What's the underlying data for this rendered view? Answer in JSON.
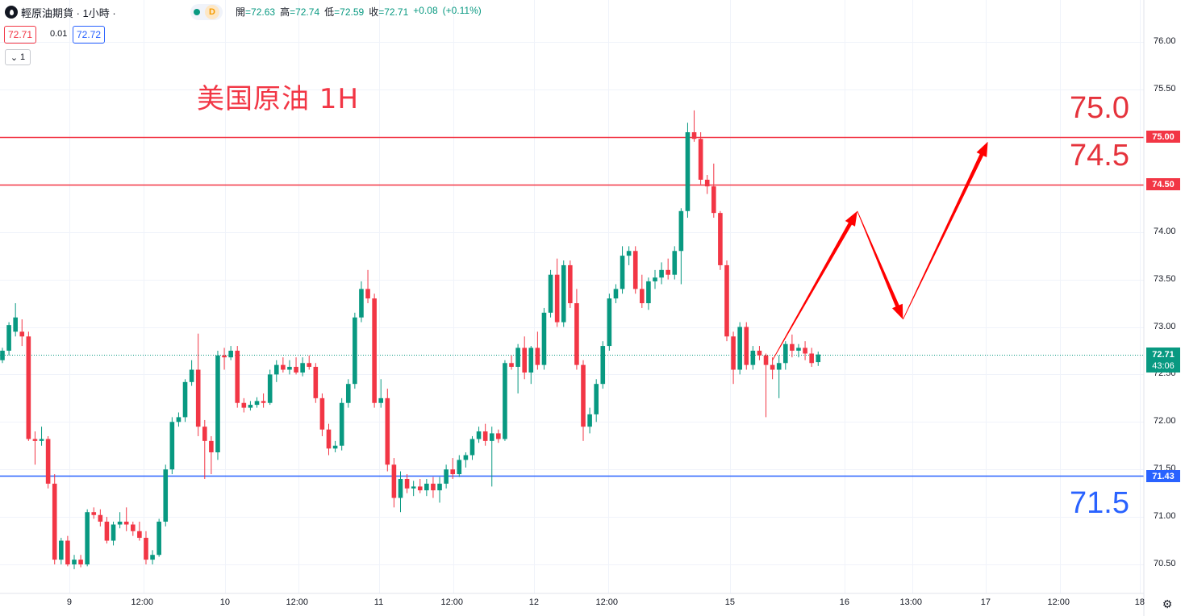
{
  "header": {
    "symbol_title": "輕原油期貨 · 1小時 ·",
    "status_badge": "D",
    "ohlc": [
      {
        "label": "開",
        "value": "=72.63"
      },
      {
        "label": "高",
        "value": "=72.74"
      },
      {
        "label": "低",
        "value": "=72.59"
      },
      {
        "label": "收",
        "value": "=72.71"
      },
      {
        "label": "",
        "value": "+0.08"
      },
      {
        "label": "",
        "value": "(+0.11%)"
      }
    ],
    "sell_price": "72.71",
    "spread": "0.01",
    "buy_price": "72.72",
    "lots": "1"
  },
  "colors": {
    "up": "#089981",
    "down": "#f23645",
    "resistance": "#f23645",
    "support": "#2962ff",
    "arrow": "#ff0000"
  },
  "annotations": {
    "title": "美国原油 1H",
    "resistance_1": "75.0",
    "resistance_2": "74.5",
    "support_1": "71.5"
  },
  "price_tags": {
    "r1": "75.00",
    "r2": "74.50",
    "s1": "71.43",
    "current_price": "72.71",
    "countdown": "43:06"
  },
  "chart_data": {
    "type": "candlestick",
    "ylim": [
      70.35,
      76.15
    ],
    "y_ticks": [
      "76.00",
      "75.50",
      "75.00",
      "74.50",
      "74.00",
      "73.50",
      "73.00",
      "72.50",
      "72.00",
      "71.50",
      "71.00",
      "70.50"
    ],
    "x_ticks": [
      "9",
      "12:00",
      "10",
      "12:00",
      "11",
      "12:00",
      "12",
      "12:00",
      "15",
      "16",
      "13:00",
      "17",
      "12:00",
      "18"
    ],
    "horizontal_lines": [
      {
        "price": 75.0,
        "color": "#f23645"
      },
      {
        "price": 74.5,
        "color": "#f23645"
      },
      {
        "price": 71.43,
        "color": "#2962ff"
      }
    ],
    "current_price": 72.71,
    "projection_path": [
      {
        "bar": 118,
        "price": 72.65
      },
      {
        "bar": 131,
        "price": 74.22
      },
      {
        "bar": 138,
        "price": 73.08
      },
      {
        "bar": 151,
        "price": 74.95
      }
    ],
    "ohlc_bars": [
      [
        72.65,
        72.78,
        72.62,
        72.75
      ],
      [
        72.75,
        73.05,
        72.7,
        73.02
      ],
      [
        72.95,
        73.25,
        72.9,
        73.1
      ],
      [
        72.95,
        73.08,
        72.8,
        72.9
      ],
      [
        72.9,
        72.95,
        71.8,
        71.82
      ],
      [
        71.82,
        71.9,
        71.55,
        71.8
      ],
      [
        71.8,
        71.95,
        71.75,
        71.82
      ],
      [
        71.82,
        71.85,
        71.3,
        71.35
      ],
      [
        71.35,
        71.45,
        70.5,
        70.55
      ],
      [
        70.55,
        70.78,
        70.5,
        70.75
      ],
      [
        70.75,
        70.8,
        70.48,
        70.5
      ],
      [
        70.5,
        70.6,
        70.45,
        70.55
      ],
      [
        70.55,
        70.6,
        70.47,
        70.5
      ],
      [
        70.5,
        71.08,
        70.48,
        71.05
      ],
      [
        71.05,
        71.1,
        70.98,
        71.02
      ],
      [
        71.02,
        71.08,
        70.9,
        70.95
      ],
      [
        70.95,
        71.0,
        70.72,
        70.75
      ],
      [
        70.75,
        70.95,
        70.7,
        70.92
      ],
      [
        70.92,
        71.05,
        70.88,
        70.95
      ],
      [
        70.95,
        71.1,
        70.85,
        70.92
      ],
      [
        70.92,
        70.95,
        70.8,
        70.85
      ],
      [
        70.85,
        70.95,
        70.75,
        70.78
      ],
      [
        70.78,
        70.85,
        70.5,
        70.55
      ],
      [
        70.55,
        70.65,
        70.5,
        70.6
      ],
      [
        70.6,
        70.98,
        70.58,
        70.95
      ],
      [
        70.95,
        71.55,
        70.9,
        71.5
      ],
      [
        71.5,
        72.05,
        71.45,
        72.0
      ],
      [
        72.0,
        72.1,
        71.95,
        72.05
      ],
      [
        72.05,
        72.45,
        72.0,
        72.42
      ],
      [
        72.42,
        72.65,
        72.38,
        72.55
      ],
      [
        72.55,
        72.93,
        71.85,
        71.95
      ],
      [
        71.95,
        72.02,
        71.4,
        71.8
      ],
      [
        71.8,
        71.85,
        71.45,
        71.68
      ],
      [
        71.68,
        72.75,
        71.6,
        72.7
      ],
      [
        72.7,
        72.78,
        72.55,
        72.68
      ],
      [
        72.68,
        72.8,
        72.65,
        72.75
      ],
      [
        72.75,
        72.8,
        72.15,
        72.2
      ],
      [
        72.2,
        72.25,
        72.1,
        72.15
      ],
      [
        72.15,
        72.22,
        72.12,
        72.18
      ],
      [
        72.18,
        72.26,
        72.15,
        72.22
      ],
      [
        72.22,
        72.3,
        72.15,
        72.2
      ],
      [
        72.2,
        72.55,
        72.18,
        72.5
      ],
      [
        72.5,
        72.65,
        72.42,
        72.6
      ],
      [
        72.6,
        72.68,
        72.52,
        72.55
      ],
      [
        72.55,
        72.65,
        72.5,
        72.58
      ],
      [
        72.58,
        72.68,
        72.5,
        72.52
      ],
      [
        72.52,
        72.68,
        72.48,
        72.62
      ],
      [
        72.62,
        72.7,
        72.55,
        72.58
      ],
      [
        72.58,
        72.62,
        72.2,
        72.25
      ],
      [
        72.25,
        72.3,
        71.85,
        71.92
      ],
      [
        71.92,
        71.98,
        71.65,
        71.72
      ],
      [
        71.72,
        71.8,
        71.68,
        71.75
      ],
      [
        71.75,
        72.25,
        71.7,
        72.2
      ],
      [
        72.2,
        72.45,
        72.15,
        72.4
      ],
      [
        72.4,
        73.15,
        72.35,
        73.1
      ],
      [
        73.1,
        73.48,
        73.05,
        73.4
      ],
      [
        73.4,
        73.6,
        73.25,
        73.3
      ],
      [
        73.3,
        73.35,
        72.15,
        72.2
      ],
      [
        72.2,
        72.45,
        72.15,
        72.25
      ],
      [
        72.25,
        72.35,
        71.48,
        71.55
      ],
      [
        71.55,
        71.62,
        71.1,
        71.2
      ],
      [
        71.2,
        71.48,
        71.05,
        71.4
      ],
      [
        71.4,
        71.45,
        71.25,
        71.3
      ],
      [
        71.3,
        71.38,
        71.22,
        71.32
      ],
      [
        71.32,
        71.4,
        71.25,
        71.28
      ],
      [
        71.28,
        71.4,
        71.22,
        71.35
      ],
      [
        71.35,
        71.42,
        71.2,
        71.28
      ],
      [
        71.28,
        71.42,
        71.15,
        71.35
      ],
      [
        71.35,
        71.55,
        71.3,
        71.5
      ],
      [
        71.5,
        71.62,
        71.4,
        71.45
      ],
      [
        71.45,
        71.65,
        71.42,
        71.6
      ],
      [
        71.6,
        71.68,
        71.52,
        71.65
      ],
      [
        71.65,
        71.85,
        71.6,
        71.82
      ],
      [
        71.82,
        71.95,
        71.78,
        71.9
      ],
      [
        71.9,
        71.98,
        71.75,
        71.8
      ],
      [
        71.8,
        71.95,
        71.32,
        71.88
      ],
      [
        71.88,
        71.92,
        71.78,
        71.82
      ],
      [
        71.82,
        72.65,
        71.8,
        72.62
      ],
      [
        72.62,
        72.7,
        72.55,
        72.58
      ],
      [
        72.58,
        72.82,
        72.3,
        72.78
      ],
      [
        72.78,
        72.9,
        72.45,
        72.52
      ],
      [
        72.52,
        72.8,
        72.4,
        72.78
      ],
      [
        72.78,
        72.95,
        72.55,
        72.6
      ],
      [
        72.6,
        73.2,
        72.55,
        73.15
      ],
      [
        73.15,
        73.6,
        73.1,
        73.55
      ],
      [
        73.55,
        73.72,
        73.0,
        73.05
      ],
      [
        73.05,
        73.7,
        73.0,
        73.65
      ],
      [
        73.65,
        73.7,
        73.2,
        73.25
      ],
      [
        73.25,
        73.4,
        72.55,
        72.6
      ],
      [
        72.6,
        72.65,
        71.8,
        71.95
      ],
      [
        71.95,
        72.15,
        71.88,
        72.08
      ],
      [
        72.08,
        72.45,
        72.0,
        72.4
      ],
      [
        72.4,
        72.85,
        72.35,
        72.8
      ],
      [
        72.8,
        73.35,
        72.75,
        73.3
      ],
      [
        73.3,
        73.45,
        73.25,
        73.4
      ],
      [
        73.4,
        73.85,
        73.35,
        73.75
      ],
      [
        73.75,
        73.85,
        73.65,
        73.8
      ],
      [
        73.8,
        73.85,
        73.35,
        73.4
      ],
      [
        73.4,
        73.55,
        73.2,
        73.25
      ],
      [
        73.25,
        73.52,
        73.18,
        73.48
      ],
      [
        73.48,
        73.6,
        73.4,
        73.52
      ],
      [
        73.52,
        73.68,
        73.45,
        73.6
      ],
      [
        73.6,
        73.72,
        73.5,
        73.55
      ],
      [
        73.55,
        73.85,
        73.5,
        73.8
      ],
      [
        73.8,
        74.25,
        73.45,
        74.22
      ],
      [
        74.22,
        75.15,
        74.15,
        75.05
      ],
      [
        75.05,
        75.28,
        74.95,
        74.98
      ],
      [
        74.98,
        75.05,
        74.5,
        74.55
      ],
      [
        74.55,
        74.6,
        74.4,
        74.48
      ],
      [
        74.48,
        74.72,
        74.15,
        74.2
      ],
      [
        74.2,
        74.22,
        73.6,
        73.65
      ],
      [
        73.65,
        73.7,
        72.85,
        72.9
      ],
      [
        72.9,
        72.95,
        72.4,
        72.55
      ],
      [
        72.55,
        73.05,
        72.5,
        73.0
      ],
      [
        73.0,
        73.05,
        72.55,
        72.6
      ],
      [
        72.6,
        72.8,
        72.55,
        72.75
      ],
      [
        72.75,
        72.8,
        72.65,
        72.7
      ],
      [
        72.7,
        72.72,
        72.05,
        72.6
      ],
      [
        72.6,
        72.68,
        72.45,
        72.55
      ],
      [
        72.55,
        72.7,
        72.25,
        72.62
      ],
      [
        72.62,
        72.85,
        72.55,
        72.82
      ],
      [
        72.82,
        72.92,
        72.68,
        72.75
      ],
      [
        72.75,
        72.82,
        72.68,
        72.78
      ],
      [
        72.78,
        72.85,
        72.65,
        72.72
      ],
      [
        72.72,
        72.78,
        72.58,
        72.62
      ],
      [
        72.63,
        72.74,
        72.59,
        72.71
      ]
    ]
  }
}
